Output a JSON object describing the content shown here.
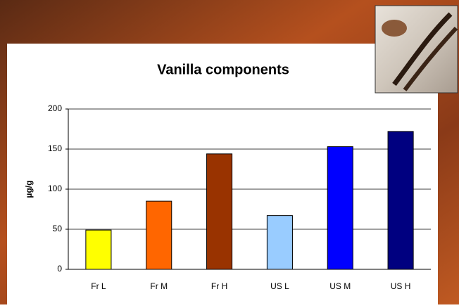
{
  "chart_data": {
    "type": "bar",
    "title": "Vanilla components",
    "y_label": "µg/g",
    "categories": [
      "Fr L",
      "Fr M",
      "Fr H",
      "US L",
      "US M",
      "US H"
    ],
    "values": [
      49,
      85,
      144,
      67,
      153,
      172
    ],
    "colors": [
      "#ffff00",
      "#ff6600",
      "#993300",
      "#99ccff",
      "#0000ff",
      "#000080"
    ],
    "ylim": [
      0,
      200
    ],
    "yticks": [
      0,
      50,
      100,
      150,
      200
    ],
    "grid": true
  }
}
